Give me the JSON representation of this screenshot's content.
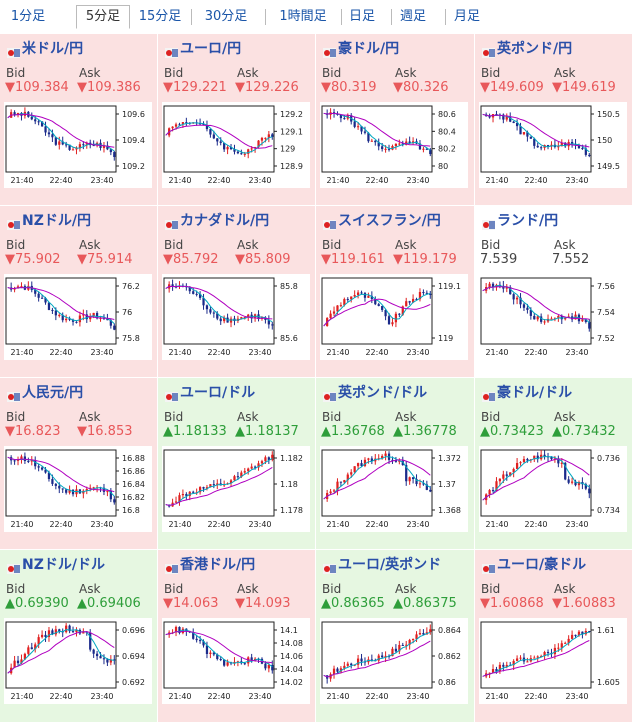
{
  "tabs": [
    {
      "label": "1分足",
      "active": false
    },
    {
      "label": "5分足",
      "active": true
    },
    {
      "label": "15分足",
      "active": false
    },
    {
      "label": "30分足",
      "active": false
    },
    {
      "label": "1時間足",
      "active": false
    },
    {
      "label": "日足",
      "active": false
    },
    {
      "label": "週足",
      "active": false
    },
    {
      "label": "月足",
      "active": false
    }
  ],
  "labels": {
    "bid": "Bid",
    "ask": "Ask"
  },
  "colors": {
    "up_candle": "#e02020",
    "down_candle": "#1a2a8a",
    "ma_short": "#00a8c0",
    "ma_long": "#b000c0",
    "price_down": "#e8585a",
    "price_up": "#2e9e3a"
  },
  "panels": [
    {
      "title": "米ドル/円",
      "flag": "us-jp-flag-icon",
      "trend": "down",
      "bid": "109.384",
      "ask": "109.386",
      "yticks": [
        "109.6",
        "109.4",
        "109.2"
      ],
      "xticks": [
        "21:40",
        "22:40",
        "23:40"
      ],
      "shape": "down"
    },
    {
      "title": "ユーロ/円",
      "flag": "eu-jp-flag-icon",
      "trend": "down",
      "bid": "129.221",
      "ask": "129.226",
      "yticks": [
        "129.2",
        "129.1",
        "129",
        "128.9"
      ],
      "xticks": [
        "21:40",
        "22:40",
        "23:40"
      ],
      "shape": "vdown"
    },
    {
      "title": "豪ドル/円",
      "flag": "au-jp-flag-icon",
      "trend": "down",
      "bid": "80.319",
      "ask": "80.326",
      "yticks": [
        "80.6",
        "80.4",
        "80.2",
        "80"
      ],
      "xticks": [
        "21:40",
        "22:40",
        "23:40"
      ],
      "shape": "down"
    },
    {
      "title": "英ポンド/円",
      "flag": "gb-jp-flag-icon",
      "trend": "down",
      "bid": "149.609",
      "ask": "149.619",
      "yticks": [
        "150.5",
        "150",
        "149.5"
      ],
      "xticks": [
        "21:40",
        "22:40",
        "23:40"
      ],
      "shape": "down"
    },
    {
      "title": "NZドル/円",
      "flag": "nz-jp-flag-icon",
      "trend": "down",
      "bid": "75.902",
      "ask": "75.914",
      "yticks": [
        "76.2",
        "76",
        "75.8"
      ],
      "xticks": [
        "21:40",
        "22:40",
        "23:40"
      ],
      "shape": "down"
    },
    {
      "title": "カナダドル/円",
      "flag": "ca-jp-flag-icon",
      "trend": "down",
      "bid": "85.792",
      "ask": "85.809",
      "yticks": [
        "85.8",
        "85.6"
      ],
      "xticks": [
        "21:40",
        "22:40",
        "23:40"
      ],
      "shape": "down"
    },
    {
      "title": "スイスフラン/円",
      "flag": "ch-jp-flag-icon",
      "trend": "down",
      "bid": "119.161",
      "ask": "119.179",
      "yticks": [
        "119.1",
        "119"
      ],
      "xticks": [
        "21:40",
        "22:40",
        "23:40"
      ],
      "shape": "wave"
    },
    {
      "title": "ランド/円",
      "flag": "za-jp-flag-icon",
      "trend": "flat",
      "bid": "7.539",
      "ask": "7.552",
      "yticks": [
        "7.56",
        "7.54",
        "7.52"
      ],
      "xticks": [
        "21:40",
        "22:40",
        "23:40"
      ],
      "shape": "down"
    },
    {
      "title": "人民元/円",
      "flag": "cn-jp-flag-icon",
      "trend": "down",
      "bid": "16.823",
      "ask": "16.853",
      "yticks": [
        "16.88",
        "16.86",
        "16.84",
        "16.82",
        "16.8"
      ],
      "xticks": [
        "21:40",
        "22:40",
        "23:40"
      ],
      "shape": "down"
    },
    {
      "title": "ユーロ/ドル",
      "flag": "eu-us-flag-icon",
      "trend": "up",
      "bid": "1.18133",
      "ask": "1.18137",
      "yticks": [
        "1.182",
        "1.18",
        "1.178"
      ],
      "xticks": [
        "21:40",
        "22:40",
        "23:40"
      ],
      "shape": "up"
    },
    {
      "title": "英ポンド/ドル",
      "flag": "gb-us-flag-icon",
      "trend": "up",
      "bid": "1.36768",
      "ask": "1.36778",
      "yticks": [
        "1.372",
        "1.37",
        "1.368"
      ],
      "xticks": [
        "21:40",
        "22:40",
        "23:40"
      ],
      "shape": "hump"
    },
    {
      "title": "豪ドル/ドル",
      "flag": "au-us-flag-icon",
      "trend": "up",
      "bid": "0.73423",
      "ask": "0.73432",
      "yticks": [
        "0.736",
        "0.734"
      ],
      "xticks": [
        "21:40",
        "22:40",
        "23:40"
      ],
      "shape": "hump"
    },
    {
      "title": "NZドル/ドル",
      "flag": "nz-us-flag-icon",
      "trend": "up",
      "bid": "0.69390",
      "ask": "0.69406",
      "yticks": [
        "0.696",
        "0.694",
        "0.692"
      ],
      "xticks": [
        "21:40",
        "22:40",
        "23:40"
      ],
      "shape": "hump"
    },
    {
      "title": "香港ドル/円",
      "flag": "hk-jp-flag-icon",
      "trend": "down",
      "bid": "14.063",
      "ask": "14.093",
      "yticks": [
        "14.1",
        "14.08",
        "14.06",
        "14.04",
        "14.02"
      ],
      "xticks": [
        "21:40",
        "22:40",
        "23:40"
      ],
      "shape": "down"
    },
    {
      "title": "ユーロ/英ポンド",
      "flag": "eu-gb-flag-icon",
      "trend": "up",
      "bid": "0.86365",
      "ask": "0.86375",
      "yticks": [
        "0.864",
        "0.862",
        "0.86"
      ],
      "xticks": [
        "21:40",
        "22:40",
        "23:40"
      ],
      "shape": "up"
    },
    {
      "title": "ユーロ/豪ドル",
      "flag": "eu-au-flag-icon",
      "trend": "down",
      "bid": "1.60868",
      "ask": "1.60883",
      "yticks": [
        "1.61",
        "1.605"
      ],
      "xticks": [
        "21:40",
        "22:40",
        "23:40"
      ],
      "shape": "up"
    }
  ]
}
